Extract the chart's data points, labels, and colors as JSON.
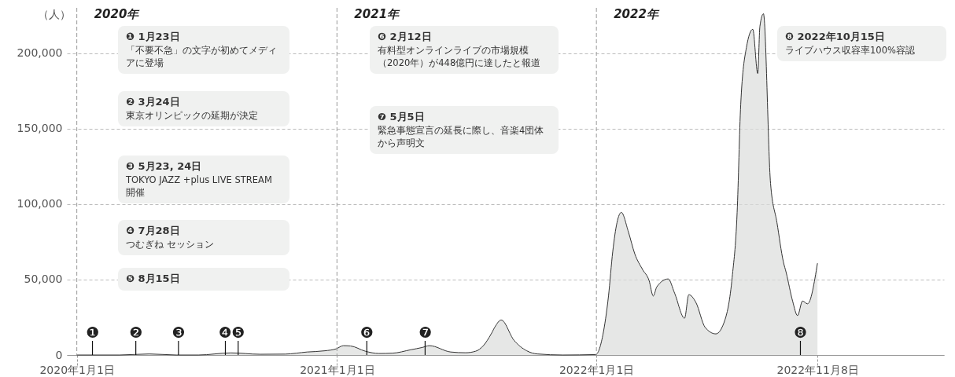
{
  "chart_data": {
    "type": "area",
    "ylabel": "（人）",
    "xlim": [
      "2019-12-18",
      "2023-05-05"
    ],
    "ylim": [
      0,
      230000
    ],
    "xticks": [
      {
        "value": "2020-01-01",
        "label": "2020年1月1日"
      },
      {
        "value": "2021-01-01",
        "label": "2021年1月1日"
      },
      {
        "value": "2022-01-01",
        "label": "2022年1月1日"
      },
      {
        "value": "2022-11-08",
        "label": "2022年11月8日"
      }
    ],
    "yticks": [
      {
        "value": 0,
        "label": "0"
      },
      {
        "value": 50000,
        "label": "50,000"
      },
      {
        "value": 100000,
        "label": "100,000"
      },
      {
        "value": 150000,
        "label": "150,000"
      },
      {
        "value": 200000,
        "label": "200,000"
      }
    ],
    "grid": "y",
    "series": [
      {
        "color": "#dcdddc",
        "x": [
          "2020-01-01",
          "2020-03-01",
          "2020-04-12",
          "2020-05-20",
          "2020-06-20",
          "2020-08-05",
          "2020-09-15",
          "2020-10-20",
          "2020-11-20",
          "2020-12-15",
          "2020-12-31",
          "2021-01-10",
          "2021-01-20",
          "2021-02-10",
          "2021-03-01",
          "2021-03-20",
          "2021-04-15",
          "2021-05-01",
          "2021-05-11",
          "2021-06-10",
          "2021-07-01",
          "2021-07-15",
          "2021-07-26",
          "2021-08-06",
          "2021-08-12",
          "2021-08-20",
          "2021-09-07",
          "2021-09-25",
          "2021-10-10",
          "2021-11-15",
          "2021-12-31",
          "2022-01-10",
          "2022-01-18",
          "2022-01-24",
          "2022-01-30",
          "2022-02-05",
          "2022-02-15",
          "2022-02-24",
          "2022-03-07",
          "2022-03-16",
          "2022-03-22",
          "2022-03-27",
          "2022-04-12",
          "2022-04-21",
          "2022-05-05",
          "2022-05-11",
          "2022-05-21",
          "2022-06-03",
          "2022-06-18",
          "2022-07-01",
          "2022-07-11",
          "2022-07-18",
          "2022-07-23",
          "2022-07-31",
          "2022-08-09",
          "2022-08-16",
          "2022-08-19",
          "2022-08-24",
          "2022-09-03",
          "2022-09-12",
          "2022-09-21",
          "2022-09-25",
          "2022-10-04",
          "2022-10-11",
          "2022-10-18",
          "2022-10-25",
          "2022-11-08"
        ],
        "values": [
          0,
          0,
          700,
          0,
          0,
          1400,
          500,
          600,
          2000,
          2800,
          4100,
          6200,
          6000,
          2500,
          1000,
          1200,
          3500,
          5000,
          6200,
          2000,
          1500,
          2500,
          6200,
          14000,
          19200,
          23200,
          9800,
          2800,
          700,
          0,
          300,
          13100,
          39100,
          68600,
          87800,
          94500,
          81600,
          67000,
          56600,
          49500,
          39100,
          45200,
          50400,
          41000,
          24400,
          40000,
          34800,
          18300,
          14000,
          23500,
          51400,
          94500,
          165700,
          203600,
          215800,
          186500,
          217700,
          226100,
          113700,
          87800,
          61800,
          54600,
          35800,
          26100,
          35800,
          33900,
          60800
        ]
      }
    ],
    "ref_lines": [
      {
        "axis": "x",
        "value": "2020-01-01",
        "label": "2020年",
        "line_style": "dashed"
      },
      {
        "axis": "x",
        "value": "2021-01-01",
        "label": "2021年",
        "line_style": "dashed"
      },
      {
        "axis": "x",
        "value": "2022-01-01",
        "label": "2022年",
        "line_style": "dashed"
      }
    ],
    "annotations": [
      "❶ 1月23日",
      "「不要不急」の文字が初めてメディアに登場",
      "❷ 3月24日",
      "東京オリンピックの延期が決定",
      "❸ 5月23, 24日",
      "TOKYO JAZZ +plus LIVE STREAM 開催",
      "❹ 7月28日",
      "つむぎね セッション",
      "❺ 8月15日",
      "❻ 2月12日",
      "有料型オンラインライブの市場規模（2020年）が448億円に達したと報道",
      "❼ 5月5日",
      "緊急事態宣言の延長に際し、音楽4団体から声明文",
      "❽ 2022年10月15日",
      "ライブハウス収容率100%容認",
      {
        "text": "❶",
        "x": "2020-01-23",
        "y": 0
      },
      {
        "text": "❷",
        "x": "2020-03-24",
        "y": 0
      },
      {
        "text": "❸",
        "x": "2020-05-23",
        "y": 0
      },
      {
        "text": "❹",
        "x": "2020-07-28",
        "y": 0
      },
      {
        "text": "❺",
        "x": "2020-08-15",
        "y": 0
      },
      {
        "text": "❻",
        "x": "2021-02-12",
        "y": 0
      },
      {
        "text": "❼",
        "x": "2021-05-05",
        "y": 0
      },
      {
        "text": "❽",
        "x": "2022-10-15",
        "y": 0
      }
    ]
  }
}
